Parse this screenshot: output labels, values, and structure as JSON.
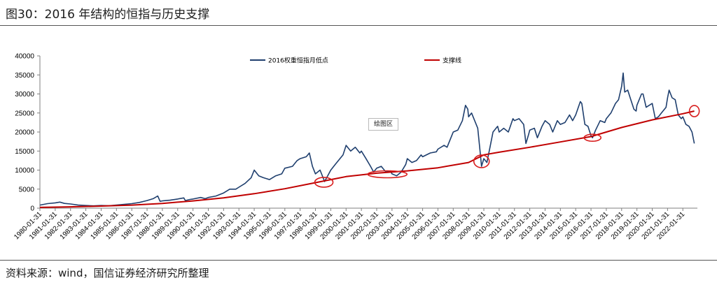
{
  "title": "图30：2016 年结构的恒指与历史支撑",
  "source": "资料来源：wind，国信证券经济研究所整理",
  "plot_area_label": "绘图区",
  "colors": {
    "series_primary": "#1f3f6e",
    "series_support": "#c00000",
    "circle": "#d81e1e",
    "axis": "#7f7f7f"
  },
  "chart_data": {
    "type": "line",
    "ylim": [
      0,
      40000
    ],
    "yticks": [
      0,
      5000,
      10000,
      15000,
      20000,
      25000,
      30000,
      35000,
      40000
    ],
    "x_categories": [
      "1980-01-31",
      "1981-01-31",
      "1982-01-31",
      "1983-01-31",
      "1984-01-31",
      "1985-01-31",
      "1986-01-31",
      "1987-01-31",
      "1988-01-31",
      "1989-01-31",
      "1990-01-31",
      "1991-01-31",
      "1992-01-31",
      "1993-01-31",
      "1994-01-31",
      "1995-01-31",
      "1996-01-31",
      "1997-01-31",
      "1998-01-31",
      "1999-01-31",
      "2000-01-31",
      "2001-01-31",
      "2002-01-31",
      "2003-01-31",
      "2004-01-31",
      "2005-01-31",
      "2006-01-31",
      "2007-01-31",
      "2008-01-31",
      "2009-01-31",
      "2010-01-31",
      "2011-01-31",
      "2012-01-31",
      "2013-01-31",
      "2014-01-31",
      "2015-01-31",
      "2016-01-31",
      "2017-01-31",
      "2018-01-31",
      "2019-01-31",
      "2020-01-31",
      "2021-01-31",
      "2022-01-31"
    ],
    "legend_position": "top",
    "grid": false,
    "series": [
      {
        "name": "2016权重恒指月低点",
        "color": "#1f3f6e",
        "points": [
          [
            1980.0,
            800
          ],
          [
            1980.5,
            1200
          ],
          [
            1981.0,
            1400
          ],
          [
            1981.3,
            1600
          ],
          [
            1981.6,
            1250
          ],
          [
            1982.0,
            1100
          ],
          [
            1982.5,
            800
          ],
          [
            1983.0,
            700
          ],
          [
            1983.5,
            600
          ],
          [
            1984.0,
            700
          ],
          [
            1984.5,
            650
          ],
          [
            1985.0,
            800
          ],
          [
            1985.5,
            1000
          ],
          [
            1986.0,
            1200
          ],
          [
            1986.5,
            1500
          ],
          [
            1987.0,
            2000
          ],
          [
            1987.4,
            2500
          ],
          [
            1987.7,
            3200
          ],
          [
            1987.85,
            1800
          ],
          [
            1988.0,
            1900
          ],
          [
            1988.5,
            2100
          ],
          [
            1989.0,
            2400
          ],
          [
            1989.4,
            2700
          ],
          [
            1989.5,
            2000
          ],
          [
            1989.8,
            2300
          ],
          [
            1990.0,
            2400
          ],
          [
            1990.5,
            2800
          ],
          [
            1990.8,
            2500
          ],
          [
            1991.0,
            2800
          ],
          [
            1991.5,
            3200
          ],
          [
            1992.0,
            4000
          ],
          [
            1992.4,
            5000
          ],
          [
            1992.8,
            5000
          ],
          [
            1993.0,
            5500
          ],
          [
            1993.4,
            6500
          ],
          [
            1993.8,
            8000
          ],
          [
            1994.0,
            10000
          ],
          [
            1994.3,
            8500
          ],
          [
            1994.6,
            8000
          ],
          [
            1995.0,
            7500
          ],
          [
            1995.4,
            8500
          ],
          [
            1995.8,
            9000
          ],
          [
            1996.0,
            10500
          ],
          [
            1996.5,
            11000
          ],
          [
            1996.8,
            12500
          ],
          [
            1997.0,
            13000
          ],
          [
            1997.4,
            13500
          ],
          [
            1997.6,
            14500
          ],
          [
            1997.8,
            11000
          ],
          [
            1998.0,
            9000
          ],
          [
            1998.3,
            10000
          ],
          [
            1998.6,
            7000
          ],
          [
            1998.8,
            8500
          ],
          [
            1999.0,
            10000
          ],
          [
            1999.3,
            11500
          ],
          [
            1999.6,
            13000
          ],
          [
            1999.8,
            14000
          ],
          [
            2000.0,
            16500
          ],
          [
            2000.3,
            15000
          ],
          [
            2000.6,
            16000
          ],
          [
            2000.9,
            14500
          ],
          [
            2001.0,
            15000
          ],
          [
            2001.3,
            13000
          ],
          [
            2001.6,
            11000
          ],
          [
            2001.8,
            9500
          ],
          [
            2002.0,
            10500
          ],
          [
            2002.3,
            11000
          ],
          [
            2002.6,
            9500
          ],
          [
            2002.9,
            9800
          ],
          [
            2003.0,
            9000
          ],
          [
            2003.3,
            8500
          ],
          [
            2003.6,
            9500
          ],
          [
            2003.9,
            11500
          ],
          [
            2004.0,
            13000
          ],
          [
            2004.3,
            12000
          ],
          [
            2004.6,
            12500
          ],
          [
            2004.9,
            14000
          ],
          [
            2005.0,
            13500
          ],
          [
            2005.5,
            14500
          ],
          [
            2005.9,
            14800
          ],
          [
            2006.0,
            15500
          ],
          [
            2006.4,
            16500
          ],
          [
            2006.6,
            16000
          ],
          [
            2006.9,
            19000
          ],
          [
            2007.0,
            20000
          ],
          [
            2007.3,
            20500
          ],
          [
            2007.6,
            23000
          ],
          [
            2007.8,
            27000
          ],
          [
            2007.95,
            26000
          ],
          [
            2008.0,
            24000
          ],
          [
            2008.2,
            25000
          ],
          [
            2008.4,
            23000
          ],
          [
            2008.6,
            21000
          ],
          [
            2008.75,
            15000
          ],
          [
            2008.85,
            11000
          ],
          [
            2009.0,
            13000
          ],
          [
            2009.2,
            12000
          ],
          [
            2009.4,
            16000
          ],
          [
            2009.6,
            20000
          ],
          [
            2009.9,
            21500
          ],
          [
            2010.0,
            20000
          ],
          [
            2010.3,
            21000
          ],
          [
            2010.6,
            20000
          ],
          [
            2010.9,
            23500
          ],
          [
            2011.0,
            23000
          ],
          [
            2011.3,
            23500
          ],
          [
            2011.6,
            22000
          ],
          [
            2011.75,
            17000
          ],
          [
            2011.9,
            19000
          ],
          [
            2012.0,
            20500
          ],
          [
            2012.3,
            21000
          ],
          [
            2012.5,
            18500
          ],
          [
            2012.8,
            21500
          ],
          [
            2013.0,
            23000
          ],
          [
            2013.3,
            22000
          ],
          [
            2013.5,
            20000
          ],
          [
            2013.8,
            23000
          ],
          [
            2014.0,
            22000
          ],
          [
            2014.3,
            22500
          ],
          [
            2014.6,
            24500
          ],
          [
            2014.8,
            23000
          ],
          [
            2015.0,
            24500
          ],
          [
            2015.3,
            28000
          ],
          [
            2015.4,
            27500
          ],
          [
            2015.6,
            22000
          ],
          [
            2015.8,
            21500
          ],
          [
            2016.0,
            19000
          ],
          [
            2016.1,
            18500
          ],
          [
            2016.3,
            20500
          ],
          [
            2016.6,
            23000
          ],
          [
            2016.9,
            22500
          ],
          [
            2017.0,
            23500
          ],
          [
            2017.3,
            25000
          ],
          [
            2017.6,
            27500
          ],
          [
            2017.8,
            28500
          ],
          [
            2018.0,
            32000
          ],
          [
            2018.1,
            35500
          ],
          [
            2018.2,
            30500
          ],
          [
            2018.4,
            31000
          ],
          [
            2018.6,
            28500
          ],
          [
            2018.8,
            26000
          ],
          [
            2018.95,
            25500
          ],
          [
            2019.0,
            27000
          ],
          [
            2019.3,
            30000
          ],
          [
            2019.4,
            30000
          ],
          [
            2019.6,
            26500
          ],
          [
            2019.8,
            27000
          ],
          [
            2020.0,
            27500
          ],
          [
            2020.2,
            23500
          ],
          [
            2020.4,
            24000
          ],
          [
            2020.6,
            25000
          ],
          [
            2020.9,
            26500
          ],
          [
            2021.0,
            29000
          ],
          [
            2021.1,
            31000
          ],
          [
            2021.3,
            29000
          ],
          [
            2021.5,
            28500
          ],
          [
            2021.7,
            24500
          ],
          [
            2021.9,
            23500
          ],
          [
            2022.0,
            24000
          ],
          [
            2022.2,
            22000
          ],
          [
            2022.4,
            21500
          ],
          [
            2022.6,
            20000
          ],
          [
            2022.75,
            17000
          ]
        ]
      },
      {
        "name": "支撑线",
        "color": "#c00000",
        "points": [
          [
            1980.0,
            200
          ],
          [
            1982.0,
            350
          ],
          [
            1984.0,
            550
          ],
          [
            1986.0,
            800
          ],
          [
            1988.0,
            1250
          ],
          [
            1990.0,
            1900
          ],
          [
            1992.0,
            2700
          ],
          [
            1994.0,
            3800
          ],
          [
            1996.0,
            5100
          ],
          [
            1998.0,
            6700
          ],
          [
            2000.0,
            8300
          ],
          [
            2002.0,
            9200
          ],
          [
            2004.0,
            9800
          ],
          [
            2006.0,
            10600
          ],
          [
            2008.0,
            12000
          ],
          [
            2009.0,
            14000
          ],
          [
            2010.0,
            14700
          ],
          [
            2012.0,
            16000
          ],
          [
            2014.0,
            17400
          ],
          [
            2016.0,
            18800
          ],
          [
            2018.0,
            21200
          ],
          [
            2020.0,
            23200
          ],
          [
            2022.0,
            24800
          ],
          [
            2022.75,
            25500
          ]
        ]
      }
    ]
  }
}
